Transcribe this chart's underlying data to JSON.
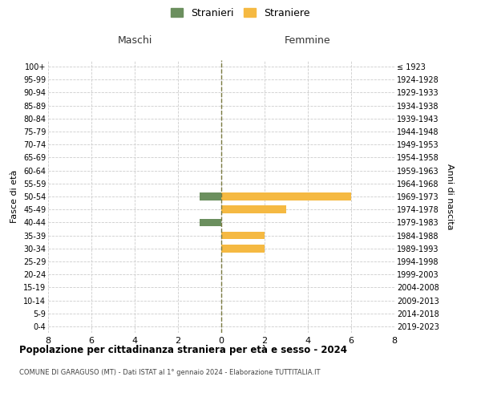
{
  "age_groups": [
    "100+",
    "95-99",
    "90-94",
    "85-89",
    "80-84",
    "75-79",
    "70-74",
    "65-69",
    "60-64",
    "55-59",
    "50-54",
    "45-49",
    "40-44",
    "35-39",
    "30-34",
    "25-29",
    "20-24",
    "15-19",
    "10-14",
    "5-9",
    "0-4"
  ],
  "birth_years": [
    "≤ 1923",
    "1924-1928",
    "1929-1933",
    "1934-1938",
    "1939-1943",
    "1944-1948",
    "1949-1953",
    "1954-1958",
    "1959-1963",
    "1964-1968",
    "1969-1973",
    "1974-1978",
    "1979-1983",
    "1984-1988",
    "1989-1993",
    "1994-1998",
    "1999-2003",
    "2004-2008",
    "2009-2013",
    "2014-2018",
    "2019-2023"
  ],
  "maschi": [
    0,
    0,
    0,
    0,
    0,
    0,
    0,
    0,
    0,
    0,
    1,
    0,
    1,
    0,
    0,
    0,
    0,
    0,
    0,
    0,
    0
  ],
  "femmine": [
    0,
    0,
    0,
    0,
    0,
    0,
    0,
    0,
    0,
    0,
    6,
    3,
    0,
    2,
    2,
    0,
    0,
    0,
    0,
    0,
    0
  ],
  "color_maschi": "#6b8f5e",
  "color_femmine": "#f5b942",
  "xlim": 8,
  "title_main": "Popolazione per cittadinanza straniera per età e sesso - 2024",
  "title_sub": "COMUNE DI GARAGUSO (MT) - Dati ISTAT al 1° gennaio 2024 - Elaborazione TUTTITALIA.IT",
  "label_maschi": "Maschi",
  "label_femmine": "Femmine",
  "legend_stranieri": "Stranieri",
  "legend_straniere": "Straniere",
  "ylabel_left": "Fasce di età",
  "ylabel_right": "Anni di nascita",
  "background_color": "#ffffff",
  "grid_color": "#cccccc"
}
